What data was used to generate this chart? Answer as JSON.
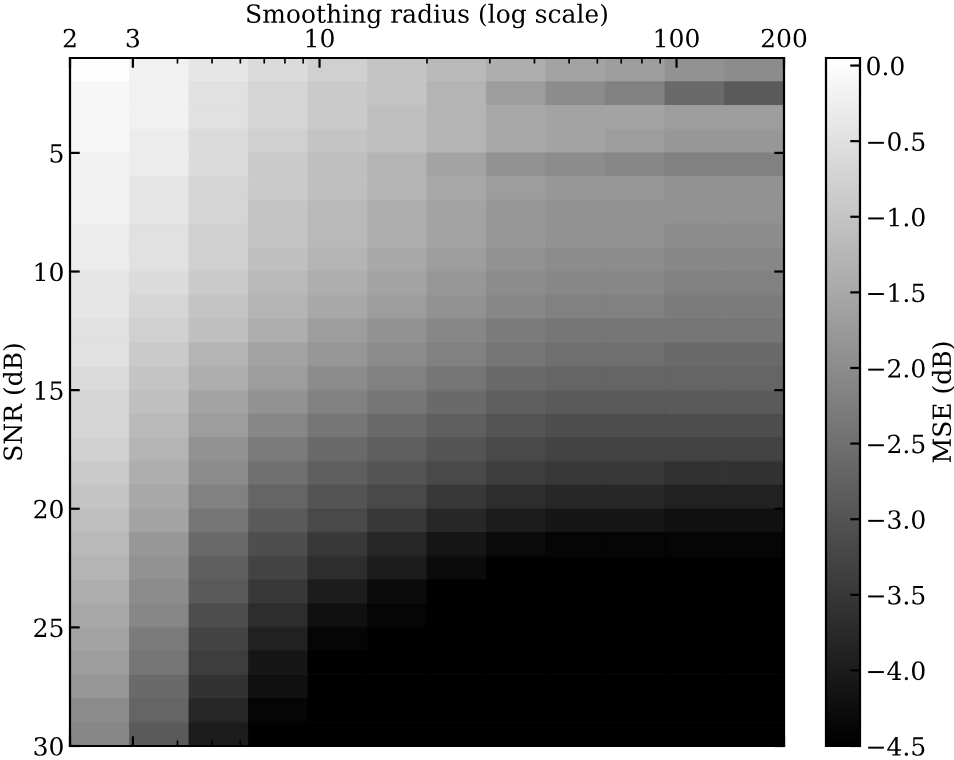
{
  "chart_data": {
    "type": "heatmap",
    "xlabel": "Smoothing radius (log scale)",
    "ylabel": "SNR (dB)",
    "clabel": "MSE (dB)",
    "log": "x",
    "grid": false,
    "xlim": [
      2,
      200
    ],
    "xticks": [
      2,
      3,
      10,
      100,
      200
    ],
    "ylim": [
      30,
      1
    ],
    "yticks": [
      5,
      10,
      15,
      20,
      25,
      30
    ],
    "clim": [
      -4.5,
      0.05
    ],
    "cticks": [
      {
        "value": -4.5,
        "label": "−4.5"
      },
      {
        "value": -4.0,
        "label": "−4.0"
      },
      {
        "value": -3.5,
        "label": "−3.5"
      },
      {
        "value": -3.0,
        "label": "−3.0"
      },
      {
        "value": -2.5,
        "label": "−2.5"
      },
      {
        "value": -2.0,
        "label": "−2.0"
      },
      {
        "value": -1.5,
        "label": "−1.5"
      },
      {
        "value": -1.0,
        "label": "−1.0"
      },
      {
        "value": -0.5,
        "label": "−0.5"
      },
      {
        "value": 0,
        "label": "0.0"
      }
    ],
    "cells": [
      [
        0.0,
        -0.2,
        -0.4,
        -0.6,
        -0.8,
        -1.0,
        -1.2,
        -1.4,
        -1.6,
        -1.7,
        -1.9,
        -2.0
      ],
      [
        -0.1,
        -0.2,
        -0.5,
        -0.7,
        -0.9,
        -1.0,
        -1.3,
        -1.7,
        -2.0,
        -2.2,
        -2.6,
        -2.9
      ],
      [
        -0.1,
        -0.2,
        -0.5,
        -0.7,
        -0.9,
        -1.1,
        -1.3,
        -1.5,
        -1.6,
        -1.6,
        -1.7,
        -1.7
      ],
      [
        -0.1,
        -0.3,
        -0.6,
        -0.8,
        -1.0,
        -1.1,
        -1.3,
        -1.5,
        -1.6,
        -1.7,
        -1.8,
        -1.8
      ],
      [
        -0.2,
        -0.3,
        -0.6,
        -0.9,
        -1.1,
        -1.3,
        -1.6,
        -1.9,
        -2.0,
        -2.1,
        -2.2,
        -2.2
      ],
      [
        -0.2,
        -0.4,
        -0.7,
        -0.9,
        -1.1,
        -1.3,
        -1.5,
        -1.7,
        -1.8,
        -1.8,
        -1.9,
        -1.9
      ],
      [
        -0.2,
        -0.4,
        -0.7,
        -1.0,
        -1.2,
        -1.4,
        -1.6,
        -1.8,
        -1.9,
        -1.9,
        -1.9,
        -1.9
      ],
      [
        -0.3,
        -0.5,
        -0.8,
        -1.0,
        -1.2,
        -1.4,
        -1.6,
        -1.8,
        -1.9,
        -1.9,
        -2.0,
        -2.0
      ],
      [
        -0.3,
        -0.5,
        -0.8,
        -1.1,
        -1.3,
        -1.5,
        -1.7,
        -1.9,
        -2.0,
        -2.0,
        -2.1,
        -2.1
      ],
      [
        -0.4,
        -0.6,
        -0.9,
        -1.2,
        -1.4,
        -1.6,
        -1.8,
        -2.0,
        -2.1,
        -2.1,
        -2.2,
        -2.2
      ],
      [
        -0.4,
        -0.7,
        -1.0,
        -1.3,
        -1.5,
        -1.7,
        -1.9,
        -2.1,
        -2.2,
        -2.2,
        -2.3,
        -2.3
      ],
      [
        -0.5,
        -0.8,
        -1.1,
        -1.4,
        -1.7,
        -1.9,
        -2.1,
        -2.3,
        -2.4,
        -2.4,
        -2.4,
        -2.4
      ],
      [
        -0.5,
        -0.9,
        -1.3,
        -1.6,
        -1.8,
        -2.0,
        -2.2,
        -2.4,
        -2.5,
        -2.5,
        -2.6,
        -2.6
      ],
      [
        -0.6,
        -1.0,
        -1.4,
        -1.7,
        -2.0,
        -2.2,
        -2.4,
        -2.6,
        -2.7,
        -2.7,
        -2.7,
        -2.7
      ],
      [
        -0.7,
        -1.1,
        -1.6,
        -1.9,
        -2.2,
        -2.4,
        -2.6,
        -2.8,
        -2.9,
        -2.9,
        -2.9,
        -2.9
      ],
      [
        -0.7,
        -1.2,
        -1.7,
        -2.1,
        -2.4,
        -2.6,
        -2.8,
        -3.0,
        -3.1,
        -3.1,
        -3.1,
        -3.1
      ],
      [
        -0.8,
        -1.3,
        -1.9,
        -2.3,
        -2.6,
        -2.8,
        -3.0,
        -3.2,
        -3.3,
        -3.3,
        -3.3,
        -3.3
      ],
      [
        -0.9,
        -1.4,
        -2.0,
        -2.5,
        -2.8,
        -3.0,
        -3.2,
        -3.4,
        -3.5,
        -3.5,
        -3.6,
        -3.6
      ],
      [
        -1.0,
        -1.5,
        -2.2,
        -2.7,
        -3.0,
        -3.2,
        -3.5,
        -3.7,
        -3.8,
        -3.8,
        -3.9,
        -3.9
      ],
      [
        -1.1,
        -1.6,
        -2.4,
        -2.9,
        -3.2,
        -3.5,
        -3.8,
        -4.0,
        -4.1,
        -4.1,
        -4.2,
        -4.2
      ],
      [
        -1.2,
        -1.8,
        -2.6,
        -3.1,
        -3.5,
        -3.8,
        -4.1,
        -4.3,
        -4.4,
        -4.4,
        -4.4,
        -4.4
      ],
      [
        -1.3,
        -1.9,
        -2.8,
        -3.3,
        -3.7,
        -4.0,
        -4.3,
        -4.5,
        -4.5,
        -4.5,
        -4.5,
        -4.5
      ],
      [
        -1.4,
        -2.0,
        -2.9,
        -3.5,
        -4.0,
        -4.3,
        -4.5,
        -4.5,
        -4.5,
        -4.5,
        -4.5,
        -4.5
      ],
      [
        -1.5,
        -2.1,
        -3.1,
        -3.7,
        -4.2,
        -4.4,
        -4.5,
        -4.5,
        -4.5,
        -4.5,
        -4.5,
        -4.5
      ],
      [
        -1.6,
        -2.3,
        -3.3,
        -3.9,
        -4.4,
        -4.5,
        -4.5,
        -4.5,
        -4.5,
        -4.5,
        -4.5,
        -4.5
      ],
      [
        -1.7,
        -2.4,
        -3.4,
        -4.1,
        -4.5,
        -4.5,
        -4.5,
        -4.5,
        -4.5,
        -4.5,
        -4.5,
        -4.5
      ],
      [
        -1.8,
        -2.6,
        -3.6,
        -4.2,
        -4.5,
        -4.5,
        -4.5,
        -4.5,
        -4.5,
        -4.5,
        -4.5,
        -4.5
      ],
      [
        -2.0,
        -2.7,
        -3.8,
        -4.4,
        -4.5,
        -4.5,
        -4.5,
        -4.5,
        -4.5,
        -4.5,
        -4.5,
        -4.5
      ],
      [
        -2.1,
        -2.9,
        -4.0,
        -4.5,
        -4.5,
        -4.5,
        -4.5,
        -4.5,
        -4.5,
        -4.5,
        -4.5,
        -4.5
      ]
    ]
  }
}
